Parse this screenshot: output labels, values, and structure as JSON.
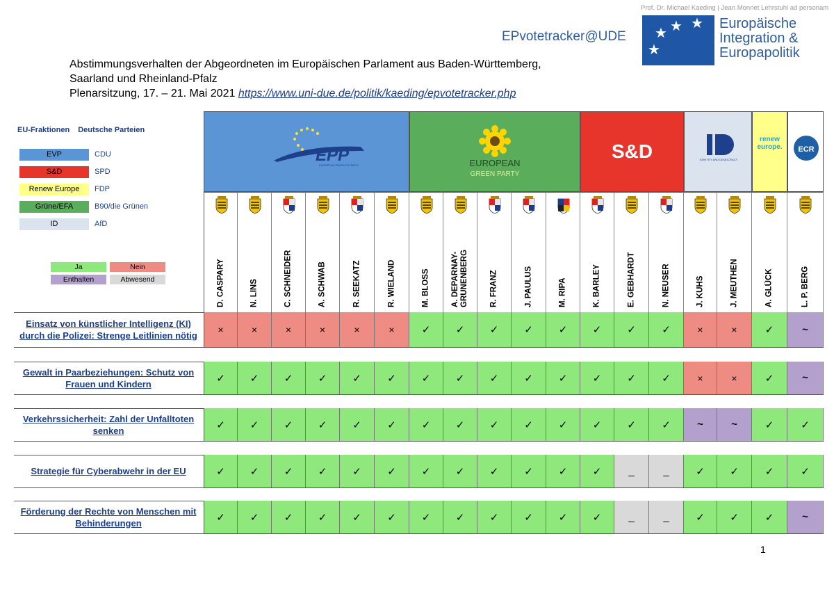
{
  "header": {
    "credit": "Prof. Dr. Michael Kaeding | Jean Monnet Lehrstuhl ad personam",
    "tracker": "EPvotetracker@UDE",
    "logo_lines": [
      "Europäische",
      "Integration &",
      "Europapolitik"
    ],
    "title_line1": "Abstimmungsverhalten der Abgeordneten im Europäischen Parlament aus Baden-Württemberg,",
    "title_line2": "Saarland und Rheinland-Pfalz",
    "title_line3": "Plenarsitzung, 17. – 21. Mai 2021",
    "link": "https://www.uni-due.de/politik/kaeding/epvotetracker.php"
  },
  "legend": {
    "head_left": "EU-Fraktionen",
    "head_right": "Deutsche Parteien",
    "groups": [
      {
        "group": "EVP",
        "party": "CDU",
        "color": "#5b95d6"
      },
      {
        "group": "S&D",
        "party": "SPD",
        "color": "#e8352b"
      },
      {
        "group": "Renew Europe",
        "party": "FDP",
        "color": "#ffff8a"
      },
      {
        "group": "Grüne/EFA",
        "party": "B90/die Grünen",
        "color": "#5aad5a"
      },
      {
        "group": "ID",
        "party": "AfD",
        "color": "#dbe3ef"
      }
    ],
    "votes": {
      "ja": "Ja",
      "nein": "Nein",
      "enthalten": "Enthalten",
      "abwesend": "Abwesend"
    }
  },
  "factions": {
    "epp": {
      "label": "EPP",
      "sub": "EUROPEAN PEOPLE'S PARTY",
      "color": "#5b95d6"
    },
    "greens": {
      "label1": "EUROPEAN",
      "label2": "GREEN PARTY",
      "color": "#5aad5a"
    },
    "sd": {
      "label": "S&D",
      "color": "#e8352b"
    },
    "id": {
      "label": "IDENTITY AND DEMOCRACY",
      "color": "#dbe3ef"
    },
    "renew": {
      "label1": "renew",
      "label2": "europe.",
      "color": "#ffff8a"
    },
    "ecr": {
      "label": "ECR",
      "color": "#ffffff"
    }
  },
  "members": [
    {
      "name": "D. CASPARY",
      "state": "bw"
    },
    {
      "name": "N. LINS",
      "state": "bw"
    },
    {
      "name": "C. SCHNEIDER",
      "state": "rp"
    },
    {
      "name": "A. SCHWAB",
      "state": "bw"
    },
    {
      "name": "R. SEEKATZ",
      "state": "rp"
    },
    {
      "name": "R. WIELAND",
      "state": "bw"
    },
    {
      "name": "M. BLOSS",
      "state": "bw"
    },
    {
      "name": "A. DEPARNAY-\nGRUNENBERG",
      "state": "bw"
    },
    {
      "name": "R. FRANZ",
      "state": "rp"
    },
    {
      "name": "J. PAULUS",
      "state": "rp"
    },
    {
      "name": "M. RIPA",
      "state": "sl"
    },
    {
      "name": "K. BARLEY",
      "state": "rp"
    },
    {
      "name": "E. GEBHARDT",
      "state": "bw"
    },
    {
      "name": "N. NEUSER",
      "state": "rp"
    },
    {
      "name": "J. KUHS",
      "state": "bw"
    },
    {
      "name": "J. MEUTHEN",
      "state": "bw"
    },
    {
      "name": "A. GLÜCK",
      "state": "bw"
    },
    {
      "name": "L. P. BERG",
      "state": "bw"
    }
  ],
  "rows": [
    {
      "topic": "Einsatz von künstlicher Intelligenz (KI) durch die Polizei: Strenge Leitlinien nötig",
      "votes": [
        "n",
        "n",
        "n",
        "n",
        "n",
        "n",
        "j",
        "j",
        "j",
        "j",
        "j",
        "j",
        "j",
        "j",
        "n",
        "n",
        "j",
        "e"
      ]
    },
    {
      "topic": "Gewalt in Paarbeziehungen: Schutz von Frauen und Kindern",
      "votes": [
        "j",
        "j",
        "j",
        "j",
        "j",
        "j",
        "j",
        "j",
        "j",
        "j",
        "j",
        "j",
        "j",
        "j",
        "n",
        "n",
        "j",
        "e"
      ]
    },
    {
      "topic": "Verkehrssicherheit: Zahl der Unfalltoten senken",
      "votes": [
        "j",
        "j",
        "j",
        "j",
        "j",
        "j",
        "j",
        "j",
        "j",
        "j",
        "j",
        "j",
        "j",
        "j",
        "e",
        "e",
        "j",
        "j"
      ]
    },
    {
      "topic": "Strategie für Cyberabwehr in der EU",
      "votes": [
        "j",
        "j",
        "j",
        "j",
        "j",
        "j",
        "j",
        "j",
        "j",
        "j",
        "j",
        "j",
        "a",
        "a",
        "j",
        "j",
        "j",
        "j"
      ]
    },
    {
      "topic": "Förderung der Rechte von Menschen mit Behinderungen",
      "votes": [
        "j",
        "j",
        "j",
        "j",
        "j",
        "j",
        "j",
        "j",
        "j",
        "j",
        "j",
        "j",
        "a",
        "a",
        "j",
        "j",
        "j",
        "e"
      ]
    }
  ],
  "symbols": {
    "j": "✓",
    "n": "×",
    "e": "~",
    "a": "_"
  },
  "page_number": "1"
}
